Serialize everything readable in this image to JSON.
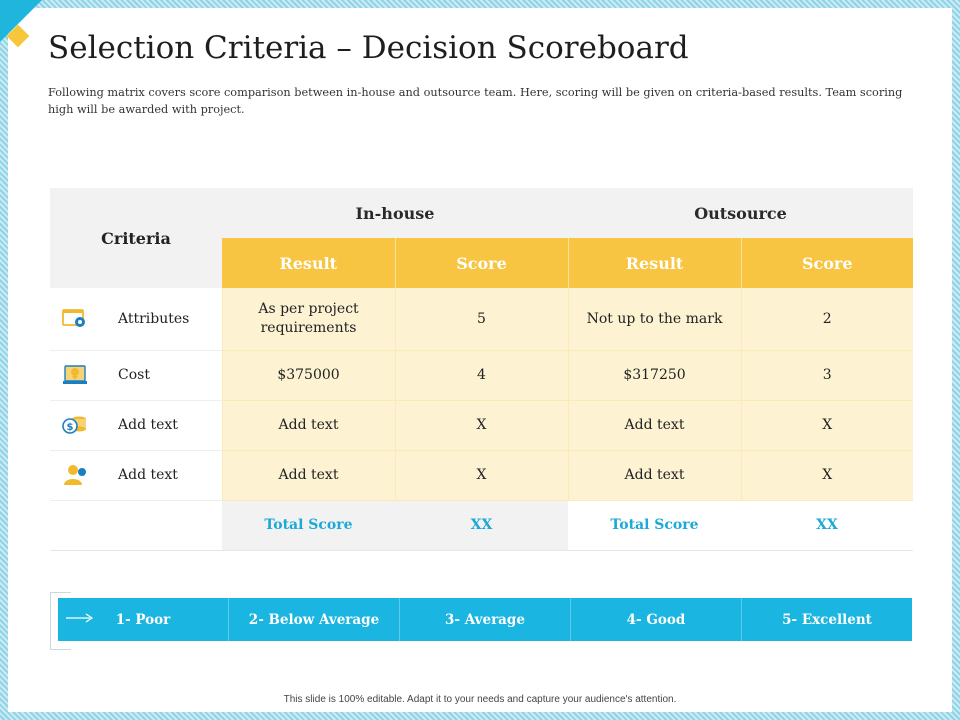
{
  "title": "Selection Criteria – Decision Scoreboard",
  "subtitle": "Following matrix covers score comparison between  in-house and outsource team. Here, scoring will be given on criteria-based  results. Team scoring high will be awarded  with project.",
  "table": {
    "criteria_header": "Criteria",
    "groups": [
      "In-house",
      "Outsource"
    ],
    "sub_headers": [
      "Result",
      "Score",
      "Result",
      "Score"
    ],
    "rows": [
      {
        "icon": "gear-window-icon",
        "criteria": "Attributes",
        "inhouse_result": "As per project requirements",
        "inhouse_score": "5",
        "outsource_result": "Not up to the mark",
        "outsource_score": "2"
      },
      {
        "icon": "money-laptop-icon",
        "criteria": "Cost",
        "inhouse_result": "$375000",
        "inhouse_score": "4",
        "outsource_result": "$317250",
        "outsource_score": "3"
      },
      {
        "icon": "coins-icon",
        "criteria": "Add text",
        "inhouse_result": "Add text",
        "inhouse_score": "X",
        "outsource_result": "Add text",
        "outsource_score": "X"
      },
      {
        "icon": "user-icon",
        "criteria": "Add text",
        "inhouse_result": "Add text",
        "inhouse_score": "X",
        "outsource_result": "Add text",
        "outsource_score": "X"
      }
    ],
    "total": {
      "inhouse_label": "Total Score",
      "inhouse_value": "XX",
      "outsource_label": "Total Score",
      "outsource_value": "XX"
    }
  },
  "scale": [
    "1- Poor",
    "2- Below Average",
    "3- Average",
    "4- Good",
    "5- Excellent"
  ],
  "footer": "This slide is 100% editable.  Adapt it to your needs and capture your audience's attention.",
  "colors": {
    "accent_yellow": "#f7c542",
    "accent_blue": "#1ab5e0",
    "row_yellow": "#fdf3d3"
  }
}
